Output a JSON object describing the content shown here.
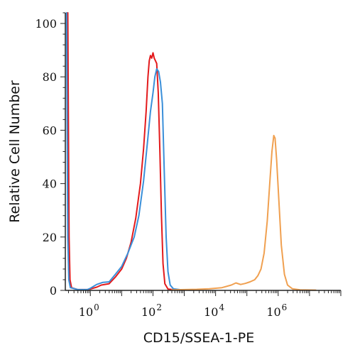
{
  "chart_data": {
    "type": "line",
    "xlabel": "CD15/SSEA-1-PE",
    "ylabel": "Relative Cell Number",
    "x_scale": "log10",
    "xlim_log10": [
      -0.8,
      8.0
    ],
    "ylim": [
      0,
      104
    ],
    "x_tick_labels": [
      {
        "base": "10",
        "exp": "0",
        "log10": 0
      },
      {
        "base": "10",
        "exp": "2",
        "log10": 2
      },
      {
        "base": "10",
        "exp": "4",
        "log10": 4
      },
      {
        "base": "10",
        "exp": "6",
        "log10": 6
      }
    ],
    "y_ticks": [
      0,
      20,
      40,
      60,
      80,
      100
    ],
    "grid": false,
    "series": [
      {
        "color": "#e31a1c",
        "points_log10": [
          [
            -0.72,
            104
          ],
          [
            -0.7,
            60
          ],
          [
            -0.68,
            20
          ],
          [
            -0.65,
            4
          ],
          [
            -0.6,
            1
          ],
          [
            -0.4,
            0.3
          ],
          [
            -0.1,
            0.3
          ],
          [
            0.0,
            0.5
          ],
          [
            0.2,
            1.2
          ],
          [
            0.35,
            2.0
          ],
          [
            0.6,
            2.5
          ],
          [
            0.8,
            5
          ],
          [
            1.0,
            8
          ],
          [
            1.15,
            12
          ],
          [
            1.3,
            18
          ],
          [
            1.45,
            27
          ],
          [
            1.6,
            40
          ],
          [
            1.7,
            53
          ],
          [
            1.78,
            67
          ],
          [
            1.84,
            80
          ],
          [
            1.88,
            86
          ],
          [
            1.92,
            88
          ],
          [
            1.96,
            87
          ],
          [
            2.0,
            89
          ],
          [
            2.04,
            87
          ],
          [
            2.08,
            86
          ],
          [
            2.12,
            85
          ],
          [
            2.17,
            74
          ],
          [
            2.22,
            52
          ],
          [
            2.27,
            28
          ],
          [
            2.32,
            10
          ],
          [
            2.38,
            2.5
          ],
          [
            2.48,
            0.5
          ],
          [
            2.7,
            0.2
          ],
          [
            3.0,
            0.1
          ]
        ]
      },
      {
        "color": "#3a8fd9",
        "points_log10": [
          [
            -0.76,
            104
          ],
          [
            -0.74,
            60
          ],
          [
            -0.72,
            20
          ],
          [
            -0.69,
            4
          ],
          [
            -0.64,
            1
          ],
          [
            -0.4,
            0.3
          ],
          [
            -0.1,
            0.3
          ],
          [
            0.0,
            0.8
          ],
          [
            0.2,
            2.2
          ],
          [
            0.4,
            3.0
          ],
          [
            0.6,
            3.2
          ],
          [
            0.8,
            6
          ],
          [
            1.0,
            9
          ],
          [
            1.2,
            14
          ],
          [
            1.4,
            20
          ],
          [
            1.55,
            28
          ],
          [
            1.7,
            41
          ],
          [
            1.82,
            55
          ],
          [
            1.92,
            67
          ],
          [
            2.0,
            74
          ],
          [
            2.06,
            80
          ],
          [
            2.12,
            83
          ],
          [
            2.18,
            82
          ],
          [
            2.24,
            78
          ],
          [
            2.3,
            70
          ],
          [
            2.36,
            45
          ],
          [
            2.42,
            20
          ],
          [
            2.48,
            7
          ],
          [
            2.55,
            2
          ],
          [
            2.65,
            0.6
          ],
          [
            2.9,
            0.2
          ],
          [
            3.2,
            0.1
          ]
        ]
      },
      {
        "color": "#f0a050",
        "points_log10": [
          [
            2.6,
            0.2
          ],
          [
            3.0,
            0.3
          ],
          [
            3.4,
            0.4
          ],
          [
            3.8,
            0.6
          ],
          [
            4.2,
            1.0
          ],
          [
            4.5,
            2.0
          ],
          [
            4.65,
            2.8
          ],
          [
            4.8,
            2.2
          ],
          [
            4.95,
            2.6
          ],
          [
            5.1,
            3.2
          ],
          [
            5.25,
            4.0
          ],
          [
            5.35,
            5.5
          ],
          [
            5.45,
            8
          ],
          [
            5.55,
            14
          ],
          [
            5.65,
            26
          ],
          [
            5.73,
            40
          ],
          [
            5.8,
            52
          ],
          [
            5.86,
            58
          ],
          [
            5.9,
            57
          ],
          [
            5.95,
            49
          ],
          [
            6.02,
            34
          ],
          [
            6.1,
            17
          ],
          [
            6.2,
            6
          ],
          [
            6.3,
            2
          ],
          [
            6.45,
            0.6
          ],
          [
            6.7,
            0.2
          ],
          [
            7.2,
            0.1
          ]
        ]
      }
    ]
  }
}
